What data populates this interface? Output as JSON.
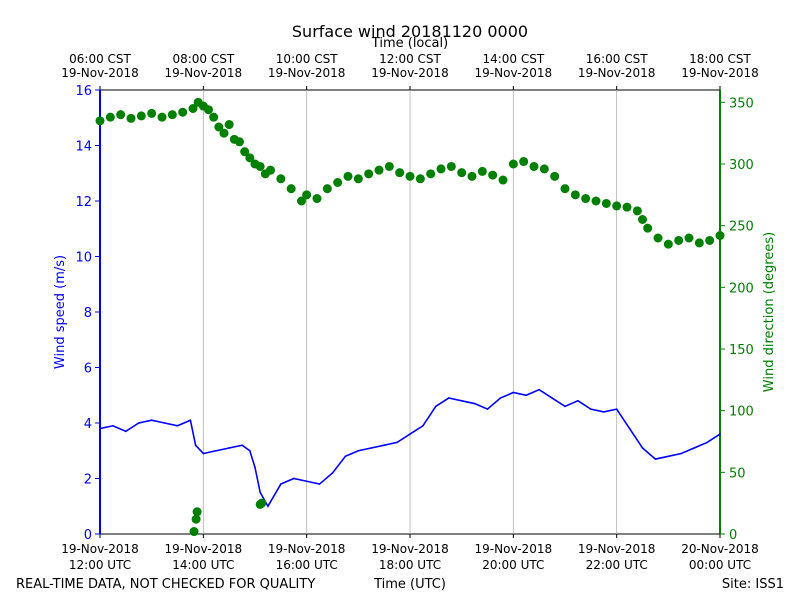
{
  "chart_data": {
    "type": "line",
    "title": "Surface wind 20181120 0000",
    "x_top_label": "Time (local)",
    "xlabel": "Time (UTC)",
    "ylabel": "Wind speed (m/s)",
    "y2label": "Wind direction (degrees)",
    "footer_left": "REAL-TIME DATA, NOT CHECKED FOR QUALITY",
    "footer_right": "Site: ISS1",
    "x_range_hours": [
      12,
      24
    ],
    "ylim": [
      0,
      16
    ],
    "y2lim": [
      0,
      360
    ],
    "yticks": [
      0,
      2,
      4,
      6,
      8,
      10,
      12,
      14,
      16
    ],
    "y2ticks": [
      0,
      50,
      100,
      150,
      200,
      250,
      300,
      350
    ],
    "grid": "vertical",
    "x_ticks_bottom": [
      {
        "h": 12,
        "date": "19-Nov-2018",
        "time": "12:00 UTC"
      },
      {
        "h": 14,
        "date": "19-Nov-2018",
        "time": "14:00 UTC"
      },
      {
        "h": 16,
        "date": "19-Nov-2018",
        "time": "16:00 UTC"
      },
      {
        "h": 18,
        "date": "19-Nov-2018",
        "time": "18:00 UTC"
      },
      {
        "h": 20,
        "date": "19-Nov-2018",
        "time": "20:00 UTC"
      },
      {
        "h": 22,
        "date": "19-Nov-2018",
        "time": "22:00 UTC"
      },
      {
        "h": 24,
        "date": "20-Nov-2018",
        "time": "00:00 UTC"
      }
    ],
    "x_ticks_top": [
      {
        "h": 12,
        "time": "06:00 CST",
        "date": "19-Nov-2018"
      },
      {
        "h": 14,
        "time": "08:00 CST",
        "date": "19-Nov-2018"
      },
      {
        "h": 16,
        "time": "10:00 CST",
        "date": "19-Nov-2018"
      },
      {
        "h": 18,
        "time": "12:00 CST",
        "date": "19-Nov-2018"
      },
      {
        "h": 20,
        "time": "14:00 CST",
        "date": "19-Nov-2018"
      },
      {
        "h": 22,
        "time": "16:00 CST",
        "date": "19-Nov-2018"
      },
      {
        "h": 24,
        "time": "18:00 CST",
        "date": "19-Nov-2018"
      }
    ],
    "series": [
      {
        "color": "#0000ff",
        "kind": "line",
        "axis": "left",
        "x": [
          12.0,
          12.25,
          12.5,
          12.75,
          13.0,
          13.25,
          13.5,
          13.75,
          13.85,
          14.0,
          14.25,
          14.5,
          14.75,
          14.9,
          15.0,
          15.1,
          15.25,
          15.5,
          15.75,
          16.0,
          16.25,
          16.5,
          16.75,
          17.0,
          17.25,
          17.5,
          17.75,
          18.0,
          18.25,
          18.5,
          18.75,
          19.0,
          19.25,
          19.5,
          19.75,
          20.0,
          20.25,
          20.5,
          20.75,
          21.0,
          21.25,
          21.5,
          21.75,
          22.0,
          22.25,
          22.5,
          22.75,
          23.0,
          23.25,
          23.5,
          23.75,
          24.0
        ],
        "values": [
          3.8,
          3.9,
          3.7,
          4.0,
          4.1,
          4.0,
          3.9,
          4.1,
          3.2,
          2.9,
          3.0,
          3.1,
          3.2,
          3.0,
          2.4,
          1.5,
          1.0,
          1.8,
          2.0,
          1.9,
          1.8,
          2.2,
          2.8,
          3.0,
          3.1,
          3.2,
          3.3,
          3.6,
          3.9,
          4.6,
          4.9,
          4.8,
          4.7,
          4.5,
          4.9,
          5.1,
          5.0,
          5.2,
          4.9,
          4.6,
          4.8,
          4.5,
          4.4,
          4.5,
          3.8,
          3.1,
          2.7,
          2.8,
          2.9,
          3.1,
          3.3,
          3.6
        ]
      },
      {
        "color": "#008000",
        "kind": "scatter",
        "axis": "right",
        "x": [
          12.0,
          12.2,
          12.4,
          12.6,
          12.8,
          13.0,
          13.2,
          13.4,
          13.6,
          13.8,
          13.9,
          14.0,
          14.1,
          14.2,
          14.3,
          14.4,
          14.5,
          14.6,
          14.7,
          14.8,
          14.9,
          15.0,
          15.1,
          15.2,
          15.3,
          15.5,
          15.7,
          15.9,
          16.0,
          16.2,
          16.4,
          16.6,
          16.8,
          17.0,
          17.2,
          17.4,
          17.6,
          17.8,
          18.0,
          18.2,
          18.4,
          18.6,
          18.8,
          19.0,
          19.2,
          19.4,
          19.6,
          19.8,
          20.0,
          20.2,
          20.4,
          20.6,
          20.8,
          21.0,
          21.2,
          21.4,
          21.6,
          21.8,
          22.0,
          22.2,
          22.4,
          22.5,
          22.6,
          22.8,
          23.0,
          23.2,
          23.4,
          23.6,
          23.8,
          24.0
        ],
        "values": [
          335,
          338,
          340,
          337,
          339,
          341,
          338,
          340,
          342,
          345,
          350,
          347,
          344,
          338,
          330,
          325,
          332,
          320,
          318,
          310,
          305,
          300,
          298,
          292,
          295,
          288,
          280,
          270,
          275,
          272,
          280,
          285,
          290,
          288,
          292,
          295,
          298,
          293,
          290,
          288,
          292,
          296,
          298,
          293,
          290,
          294,
          291,
          287,
          300,
          302,
          298,
          296,
          290,
          280,
          275,
          272,
          270,
          268,
          266,
          265,
          262,
          255,
          248,
          240,
          235,
          238,
          240,
          236,
          238,
          242
        ]
      },
      {
        "color": "#008000",
        "kind": "scatter",
        "axis": "right",
        "x": [
          13.82,
          13.86,
          13.88,
          15.1,
          15.13
        ],
        "values": [
          2,
          12,
          18,
          24,
          25
        ]
      }
    ]
  }
}
